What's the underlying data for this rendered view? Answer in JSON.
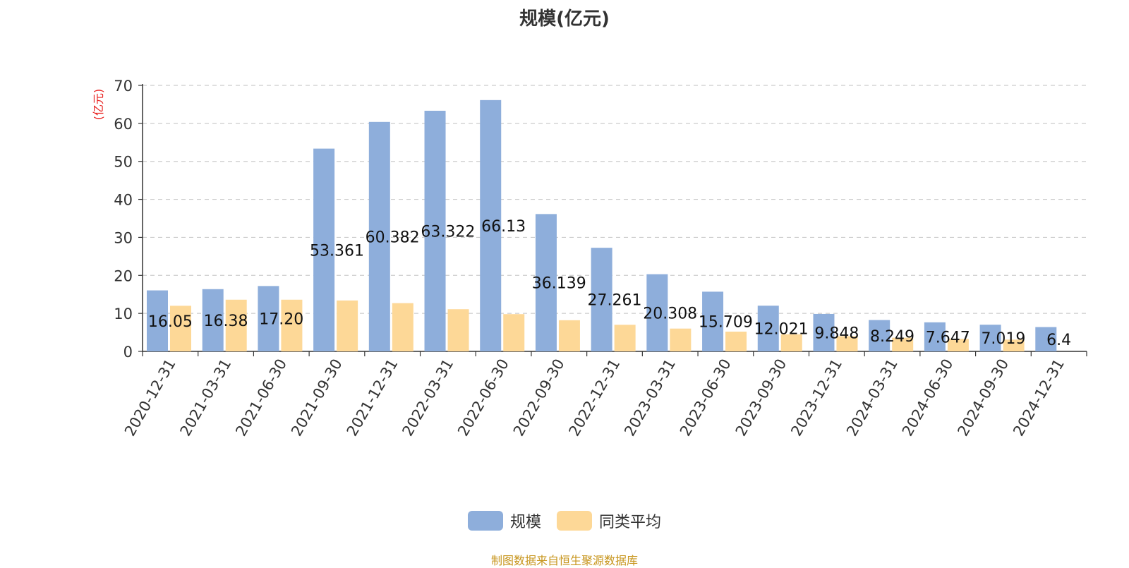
{
  "chart_data": {
    "type": "bar",
    "title": "规模(亿元)",
    "ylabel": "(亿元)",
    "xlabel": "",
    "ylim": [
      0,
      70
    ],
    "yticks": [
      0,
      10,
      20,
      30,
      40,
      50,
      60,
      70
    ],
    "grid": true,
    "legend_position": "bottom",
    "categories": [
      "2020-12-31",
      "2021-03-31",
      "2021-06-30",
      "2021-09-30",
      "2021-12-31",
      "2022-03-31",
      "2022-06-30",
      "2022-09-30",
      "2022-12-31",
      "2023-03-31",
      "2023-06-30",
      "2023-09-30",
      "2023-12-31",
      "2024-03-31",
      "2024-06-30",
      "2024-09-30",
      "2024-12-31"
    ],
    "series": [
      {
        "name": "规模",
        "color": "#8eaedb",
        "values": [
          16.05,
          16.38,
          17.2,
          53.361,
          60.382,
          63.322,
          66.13,
          36.139,
          27.261,
          20.308,
          15.709,
          12.021,
          9.848,
          8.249,
          7.647,
          7.019,
          6.4
        ],
        "labels": [
          "16.05",
          "16.38",
          "17.20",
          "53.361",
          "60.382",
          "63.322",
          "66.13",
          "36.139",
          "27.261",
          "20.308",
          "15.709",
          "12.021",
          "9.848",
          "8.249",
          "7.647",
          "7.019",
          "6.4"
        ]
      },
      {
        "name": "同类平均",
        "color": "#fdd897",
        "values": [
          12.0,
          13.6,
          13.6,
          13.4,
          12.7,
          11.1,
          9.8,
          8.2,
          7.0,
          6.0,
          5.2,
          4.5,
          4.0,
          3.6,
          3.3,
          3.1,
          null
        ]
      }
    ]
  },
  "source": "制图数据来自恒生聚源数据库"
}
